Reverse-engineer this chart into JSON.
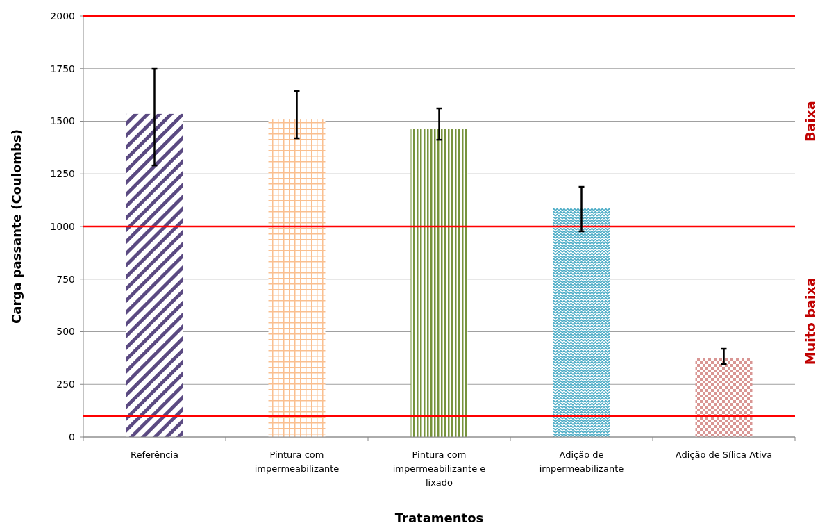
{
  "chart_data": {
    "type": "bar",
    "xlabel": "Tratamentos",
    "ylabel": "Carga passante (Coulombs)",
    "categories": [
      "Referência",
      "Pintura com impermeabilizante",
      "Pintura com impermeabilizante e lixado",
      "Adição de impermeabilizante",
      "Adição de Sílica Ativa"
    ],
    "values": [
      1535,
      1508,
      1462,
      1086,
      373
    ],
    "colors": [
      "#5b4a82",
      "#fabf8f",
      "#77933c",
      "#4bacc6",
      "#d99694"
    ],
    "errors": [
      [
        1290,
        1749
      ],
      [
        1419,
        1644
      ],
      [
        1412,
        1561
      ],
      [
        977,
        1188
      ],
      [
        347,
        419
      ]
    ],
    "ylim": [
      0,
      2000
    ],
    "yticks": [
      0,
      250,
      500,
      750,
      1000,
      1250,
      1500,
      1750,
      2000
    ],
    "grid": "y",
    "ref_lines": [
      {
        "axis": "y",
        "value": 2000,
        "color": "#ff0000"
      },
      {
        "axis": "y",
        "value": 1000,
        "color": "#ff0000"
      },
      {
        "axis": "y",
        "value": 100,
        "color": "#ff0000"
      }
    ],
    "annotations": [
      "Baixa",
      "Muito baixa"
    ]
  }
}
